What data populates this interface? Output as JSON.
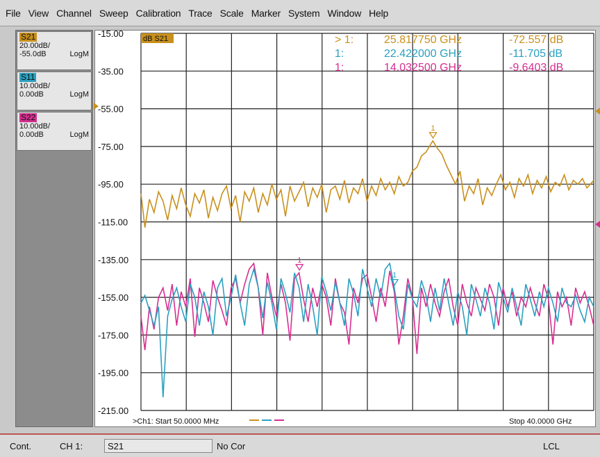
{
  "menu": [
    "File",
    "View",
    "Channel",
    "Sweep",
    "Calibration",
    "Trace",
    "Scale",
    "Marker",
    "System",
    "Window",
    "Help"
  ],
  "traces": [
    {
      "name": "S21",
      "scale": "20.00dB/",
      "ref": "-55.0dB",
      "format": "LogM",
      "color": "#c8901c"
    },
    {
      "name": "S11",
      "scale": "10.00dB/",
      "ref": "0.00dB",
      "format": "LogM",
      "color": "#2aa0c0"
    },
    {
      "name": "S22",
      "scale": "10.00dB/",
      "ref": "0.00dB",
      "format": "LogM",
      "color": "#d62e90"
    }
  ],
  "active_trace_label": "dB S21",
  "markers": [
    {
      "prefix": "> 1:",
      "freq": "25.817750 GHz",
      "value": "-72.557 dB",
      "color": "#c8901c"
    },
    {
      "prefix": "1:",
      "freq": "22.422000 GHz",
      "value": "-11.705 dB",
      "color": "#2aa0c0"
    },
    {
      "prefix": "1:",
      "freq": "14.032500 GHz",
      "value": "-9.6403 dB",
      "color": "#d62e90"
    }
  ],
  "footer": {
    "start": ">Ch1: Start  50.0000 MHz",
    "stop": "Stop  40.0000 GHz"
  },
  "status": {
    "mode": "Cont.",
    "channel": "CH 1:",
    "trace": "S21",
    "correction": "No Cor",
    "lcl": "LCL"
  },
  "chart_data": {
    "type": "line",
    "xlabel": "",
    "ylabel": "",
    "x_range_ghz": [
      0.05,
      40.0
    ],
    "ylim": [
      -215,
      -15
    ],
    "y_ticks": [
      -15.0,
      -35.0,
      -55.0,
      -75.0,
      -95.0,
      -115.0,
      -135.0,
      -155.0,
      -175.0,
      -195.0,
      -215.0
    ],
    "tick_labels": [
      "-15.00",
      "-35.00",
      "-55.00",
      "-75.00",
      "-95.00",
      "-115.00",
      "-135.00",
      "-155.00",
      "-175.00",
      "-195.00",
      "-215.00"
    ],
    "grid": true,
    "series": [
      {
        "name": "S21",
        "color": "#c8901c",
        "x": [
          0.05,
          0.4,
          0.8,
          1.2,
          1.6,
          2.0,
          2.4,
          2.8,
          3.2,
          3.6,
          4.0,
          4.4,
          4.8,
          5.2,
          5.6,
          6.0,
          6.4,
          6.8,
          7.2,
          7.6,
          8.0,
          8.4,
          8.8,
          9.2,
          9.6,
          10.0,
          10.4,
          10.8,
          11.2,
          11.6,
          12.0,
          12.4,
          12.8,
          13.2,
          13.6,
          14.0,
          14.4,
          14.8,
          15.2,
          15.6,
          16.0,
          16.4,
          16.8,
          17.2,
          17.6,
          18.0,
          18.4,
          18.8,
          19.2,
          19.6,
          20.0,
          20.4,
          20.8,
          21.2,
          21.6,
          22.0,
          22.4,
          22.8,
          23.2,
          23.6,
          24.0,
          24.4,
          24.8,
          25.2,
          25.6,
          25.8,
          26.2,
          26.6,
          27.0,
          27.4,
          27.8,
          28.2,
          28.6,
          29.0,
          29.4,
          29.8,
          30.2,
          30.6,
          31.0,
          31.4,
          31.8,
          32.2,
          32.6,
          33.0,
          33.4,
          33.8,
          34.2,
          34.6,
          35.0,
          35.4,
          35.8,
          36.2,
          36.6,
          37.0,
          37.4,
          37.8,
          38.2,
          38.6,
          39.0,
          39.4,
          40.0
        ],
        "y": [
          -100,
          -118,
          -103,
          -110,
          -99,
          -104,
          -114,
          -101,
          -108,
          -97,
          -106,
          -112,
          -100,
          -105,
          -98,
          -113,
          -102,
          -109,
          -100,
          -96,
          -108,
          -101,
          -115,
          -99,
          -104,
          -97,
          -110,
          -100,
          -106,
          -95,
          -103,
          -98,
          -112,
          -96,
          -104,
          -99,
          -94,
          -107,
          -97,
          -102,
          -95,
          -110,
          -98,
          -96,
          -103,
          -93,
          -105,
          -97,
          -100,
          -92,
          -104,
          -96,
          -101,
          -92,
          -98,
          -94,
          -100,
          -91,
          -96,
          -94,
          -88,
          -86,
          -80,
          -78,
          -74,
          -72,
          -76,
          -79,
          -85,
          -90,
          -95,
          -88,
          -104,
          -96,
          -100,
          -92,
          -106,
          -97,
          -101,
          -95,
          -90,
          -98,
          -94,
          -102,
          -92,
          -96,
          -90,
          -100,
          -93,
          -97,
          -91,
          -99,
          -94,
          -96,
          -90,
          -98,
          -93,
          -95,
          -92,
          -97,
          -93
        ]
      },
      {
        "name": "S11",
        "color": "#2aa0c0",
        "x": [
          0.05,
          0.4,
          0.8,
          1.2,
          1.6,
          2.0,
          2.4,
          2.8,
          3.2,
          3.6,
          4.0,
          4.4,
          4.8,
          5.2,
          5.6,
          6.0,
          6.4,
          6.8,
          7.2,
          7.6,
          8.0,
          8.4,
          8.8,
          9.2,
          9.6,
          10.0,
          10.4,
          10.8,
          11.2,
          11.6,
          12.0,
          12.4,
          12.8,
          13.2,
          13.6,
          14.0,
          14.4,
          14.8,
          15.2,
          15.6,
          16.0,
          16.4,
          16.8,
          17.2,
          17.6,
          18.0,
          18.4,
          18.8,
          19.2,
          19.6,
          20.0,
          20.4,
          20.8,
          21.2,
          21.6,
          22.0,
          22.4,
          22.8,
          23.2,
          23.6,
          24.0,
          24.4,
          24.8,
          25.2,
          25.6,
          26.0,
          26.4,
          26.8,
          27.2,
          27.6,
          28.0,
          28.4,
          28.8,
          29.2,
          29.6,
          30.0,
          30.4,
          30.8,
          31.2,
          31.6,
          32.0,
          32.4,
          32.8,
          33.2,
          33.6,
          34.0,
          34.4,
          34.8,
          35.2,
          35.6,
          36.0,
          36.4,
          36.8,
          37.2,
          37.6,
          38.0,
          38.4,
          38.8,
          39.2,
          39.6,
          40.0
        ],
        "y": [
          -158,
          -154,
          -162,
          -170,
          -160,
          -208,
          -165,
          -156,
          -150,
          -160,
          -168,
          -148,
          -155,
          -170,
          -152,
          -160,
          -175,
          -150,
          -145,
          -165,
          -155,
          -143,
          -158,
          -170,
          -148,
          -140,
          -150,
          -166,
          -147,
          -158,
          -172,
          -145,
          -153,
          -163,
          -142,
          -150,
          -168,
          -148,
          -160,
          -175,
          -144,
          -152,
          -162,
          -147,
          -158,
          -170,
          -145,
          -153,
          -165,
          -140,
          -150,
          -160,
          -145,
          -155,
          -140,
          -137,
          -150,
          -165,
          -172,
          -148,
          -156,
          -160,
          -146,
          -154,
          -168,
          -150,
          -162,
          -145,
          -158,
          -170,
          -152,
          -160,
          -175,
          -148,
          -156,
          -165,
          -150,
          -158,
          -172,
          -147,
          -155,
          -163,
          -150,
          -160,
          -170,
          -148,
          -156,
          -165,
          -152,
          -160,
          -150,
          -158,
          -168,
          -150,
          -158,
          -160,
          -154,
          -162,
          -168,
          -155,
          -160
        ]
      },
      {
        "name": "S22",
        "color": "#d62e90",
        "x": [
          0.05,
          0.4,
          0.8,
          1.2,
          1.6,
          2.0,
          2.4,
          2.8,
          3.2,
          3.6,
          4.0,
          4.4,
          4.8,
          5.2,
          5.6,
          6.0,
          6.4,
          6.8,
          7.2,
          7.6,
          8.0,
          8.4,
          8.8,
          9.2,
          9.6,
          10.0,
          10.4,
          10.8,
          11.2,
          11.6,
          12.0,
          12.4,
          12.8,
          13.2,
          13.6,
          14.0,
          14.4,
          14.8,
          15.2,
          15.6,
          16.0,
          16.4,
          16.8,
          17.2,
          17.6,
          18.0,
          18.4,
          18.8,
          19.2,
          19.6,
          20.0,
          20.4,
          20.8,
          21.2,
          21.6,
          22.0,
          22.4,
          22.8,
          23.2,
          23.6,
          24.0,
          24.4,
          24.8,
          25.2,
          25.6,
          26.0,
          26.4,
          26.8,
          27.2,
          27.6,
          28.0,
          28.4,
          28.8,
          29.2,
          29.6,
          30.0,
          30.4,
          30.8,
          31.2,
          31.6,
          32.0,
          32.4,
          32.8,
          33.2,
          33.6,
          34.0,
          34.4,
          34.8,
          35.2,
          35.6,
          36.0,
          36.4,
          36.8,
          37.2,
          37.6,
          38.0,
          38.4,
          38.8,
          39.2,
          39.6,
          40.0
        ],
        "y": [
          -165,
          -183,
          -160,
          -172,
          -155,
          -150,
          -162,
          -148,
          -170,
          -152,
          -160,
          -145,
          -176,
          -150,
          -158,
          -168,
          -146,
          -155,
          -162,
          -170,
          -150,
          -145,
          -158,
          -148,
          -140,
          -137,
          -150,
          -175,
          -142,
          -155,
          -165,
          -148,
          -158,
          -178,
          -145,
          -142,
          -156,
          -168,
          -150,
          -160,
          -148,
          -155,
          -170,
          -145,
          -158,
          -163,
          -180,
          -150,
          -158,
          -145,
          -143,
          -155,
          -168,
          -150,
          -160,
          -141,
          -152,
          -180,
          -165,
          -145,
          -155,
          -185,
          -150,
          -160,
          -148,
          -158,
          -165,
          -152,
          -145,
          -160,
          -170,
          -148,
          -158,
          -165,
          -150,
          -156,
          -162,
          -148,
          -155,
          -170,
          -150,
          -160,
          -152,
          -165,
          -155,
          -160,
          -150,
          -158,
          -165,
          -148,
          -156,
          -180,
          -152,
          -160,
          -155,
          -170,
          -150,
          -158,
          -152,
          -160,
          -170
        ]
      }
    ]
  }
}
